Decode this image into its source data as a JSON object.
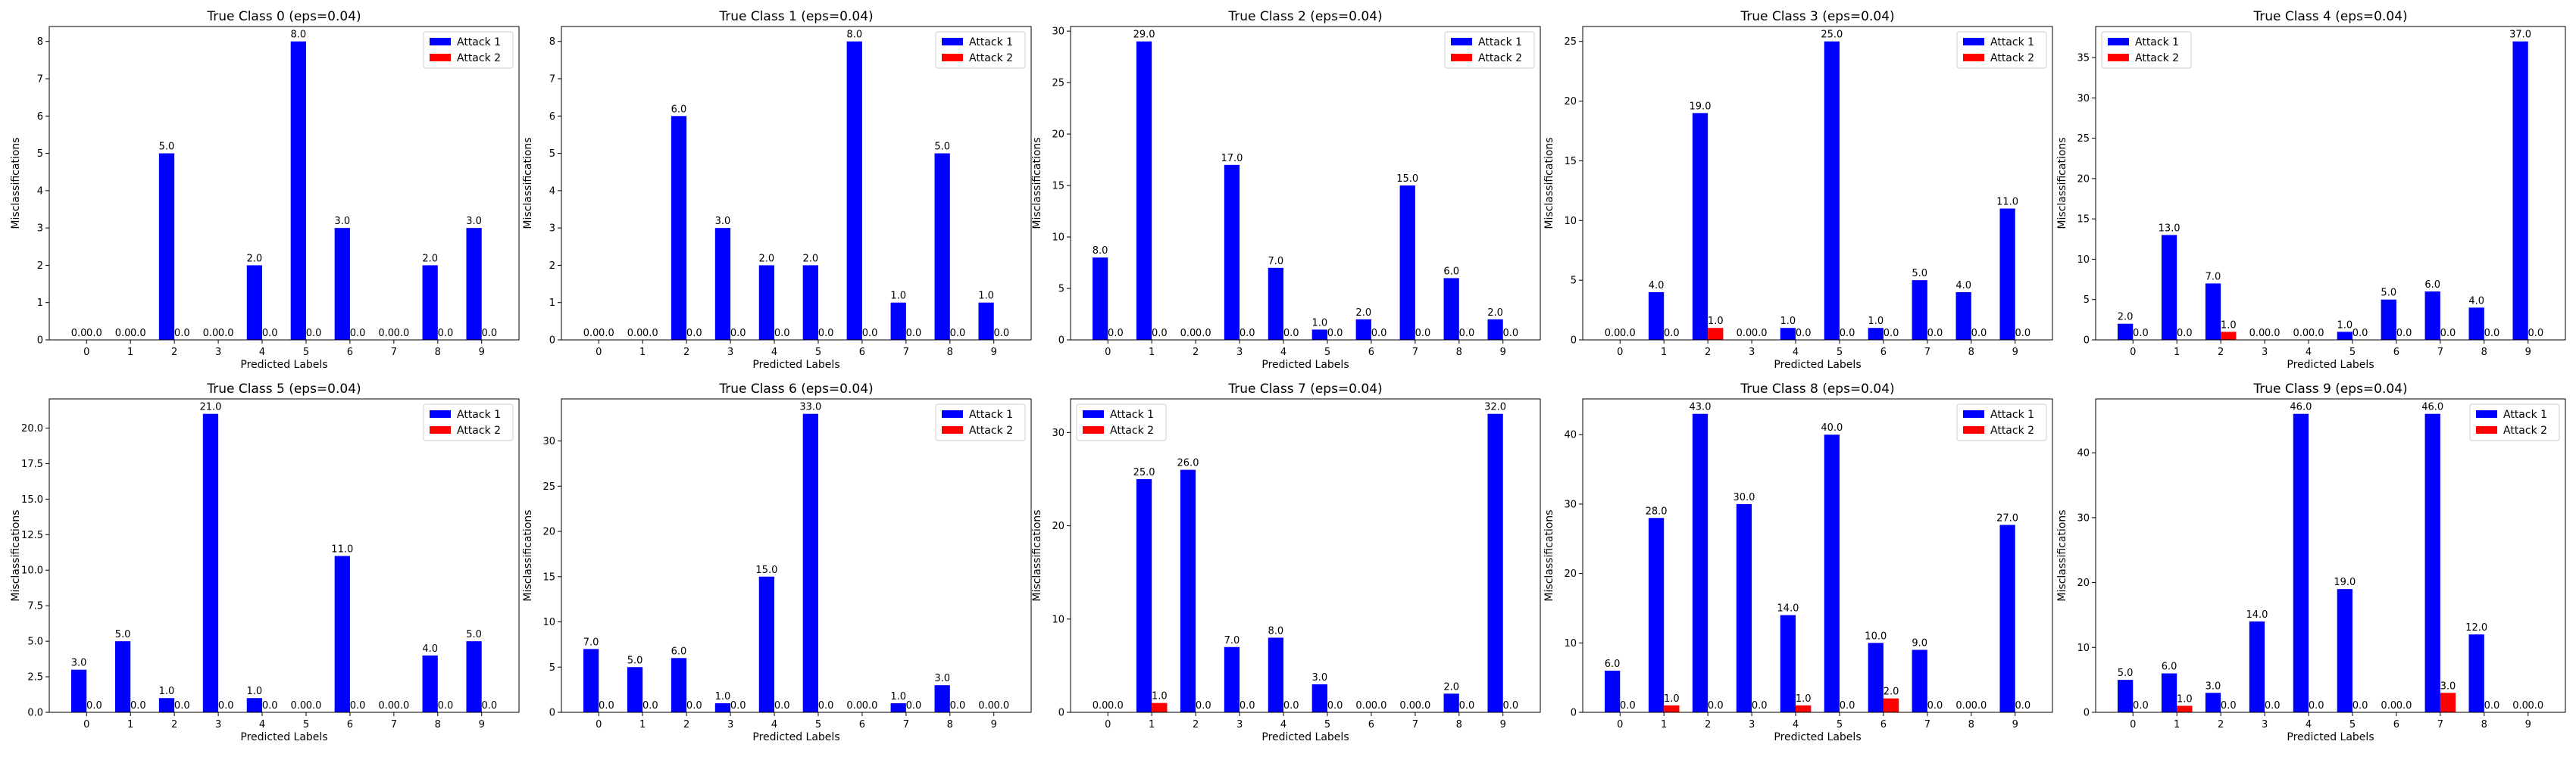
{
  "figure": {
    "layout": "2 rows x 5 columns"
  },
  "legend_labels": [
    "Attack 1",
    "Attack 2"
  ],
  "colors": {
    "attack1": "#0000ff",
    "attack2": "#ff0000",
    "axes": "#000000",
    "background": "#ffffff"
  },
  "chart_data": [
    {
      "type": "bar",
      "title": "True Class 0 (eps=0.04)",
      "xlabel": "Predicted Labels",
      "ylabel": "Misclassifications",
      "categories": [
        "0",
        "1",
        "2",
        "3",
        "4",
        "5",
        "6",
        "7",
        "8",
        "9"
      ],
      "series": [
        {
          "name": "Attack 1",
          "values": [
            0,
            0,
            5,
            0,
            2,
            8,
            3,
            0,
            2,
            3
          ]
        },
        {
          "name": "Attack 2",
          "values": [
            0,
            0,
            0,
            0,
            0,
            0,
            0,
            0,
            0,
            0
          ]
        }
      ],
      "ylim": [
        0,
        8.4
      ],
      "yticks": [
        0,
        1,
        2,
        3,
        4,
        5,
        6,
        7,
        8
      ],
      "yticks_text": [
        "0",
        "1",
        "2",
        "3",
        "4",
        "5",
        "6",
        "7",
        "8"
      ],
      "legend": "top-right"
    },
    {
      "type": "bar",
      "title": "True Class 1 (eps=0.04)",
      "xlabel": "Predicted Labels",
      "ylabel": "Misclassifications",
      "categories": [
        "0",
        "1",
        "2",
        "3",
        "4",
        "5",
        "6",
        "7",
        "8",
        "9"
      ],
      "series": [
        {
          "name": "Attack 1",
          "values": [
            0,
            0,
            6,
            3,
            2,
            2,
            8,
            1,
            5,
            1
          ]
        },
        {
          "name": "Attack 2",
          "values": [
            0,
            0,
            0,
            0,
            0,
            0,
            0,
            0,
            0,
            0
          ]
        }
      ],
      "ylim": [
        0,
        8.4
      ],
      "yticks": [
        0,
        1,
        2,
        3,
        4,
        5,
        6,
        7,
        8
      ],
      "yticks_text": [
        "0",
        "1",
        "2",
        "3",
        "4",
        "5",
        "6",
        "7",
        "8"
      ],
      "legend": "top-right"
    },
    {
      "type": "bar",
      "title": "True Class 2 (eps=0.04)",
      "xlabel": "Predicted Labels",
      "ylabel": "Misclassifications",
      "categories": [
        "0",
        "1",
        "2",
        "3",
        "4",
        "5",
        "6",
        "7",
        "8",
        "9"
      ],
      "series": [
        {
          "name": "Attack 1",
          "values": [
            8,
            29,
            0,
            17,
            7,
            1,
            2,
            15,
            6,
            2
          ]
        },
        {
          "name": "Attack 2",
          "values": [
            0,
            0,
            0,
            0,
            0,
            0,
            0,
            0,
            0,
            0
          ]
        }
      ],
      "ylim": [
        0,
        30.45
      ],
      "yticks": [
        0,
        5,
        10,
        15,
        20,
        25,
        30
      ],
      "yticks_text": [
        "0",
        "5",
        "10",
        "15",
        "20",
        "25",
        "30"
      ],
      "legend": "top-right"
    },
    {
      "type": "bar",
      "title": "True Class 3 (eps=0.04)",
      "xlabel": "Predicted Labels",
      "ylabel": "Misclassifications",
      "categories": [
        "0",
        "1",
        "2",
        "3",
        "4",
        "5",
        "6",
        "7",
        "8",
        "9"
      ],
      "series": [
        {
          "name": "Attack 1",
          "values": [
            0,
            4,
            19,
            0,
            1,
            25,
            1,
            5,
            4,
            11
          ]
        },
        {
          "name": "Attack 2",
          "values": [
            0,
            0,
            1,
            0,
            0,
            0,
            0,
            0,
            0,
            0
          ]
        }
      ],
      "ylim": [
        0,
        26.25
      ],
      "yticks": [
        0,
        5,
        10,
        15,
        20,
        25
      ],
      "yticks_text": [
        "0",
        "5",
        "10",
        "15",
        "20",
        "25"
      ],
      "legend": "top-right"
    },
    {
      "type": "bar",
      "title": "True Class 4 (eps=0.04)",
      "xlabel": "Predicted Labels",
      "ylabel": "Misclassifications",
      "categories": [
        "0",
        "1",
        "2",
        "3",
        "4",
        "5",
        "6",
        "7",
        "8",
        "9"
      ],
      "series": [
        {
          "name": "Attack 1",
          "values": [
            2,
            13,
            7,
            0,
            0,
            1,
            5,
            6,
            4,
            37
          ]
        },
        {
          "name": "Attack 2",
          "values": [
            0,
            0,
            1,
            0,
            0,
            0,
            0,
            0,
            0,
            0
          ]
        }
      ],
      "ylim": [
        0,
        38.85
      ],
      "yticks": [
        0,
        5,
        10,
        15,
        20,
        25,
        30,
        35
      ],
      "yticks_text": [
        "0",
        "5",
        "10",
        "15",
        "20",
        "25",
        "30",
        "35"
      ],
      "legend": "top-left"
    },
    {
      "type": "bar",
      "title": "True Class 5 (eps=0.04)",
      "xlabel": "Predicted Labels",
      "ylabel": "Misclassifications",
      "categories": [
        "0",
        "1",
        "2",
        "3",
        "4",
        "5",
        "6",
        "7",
        "8",
        "9"
      ],
      "series": [
        {
          "name": "Attack 1",
          "values": [
            3,
            5,
            1,
            21,
            1,
            0,
            11,
            0,
            4,
            5
          ]
        },
        {
          "name": "Attack 2",
          "values": [
            0,
            0,
            0,
            0,
            0,
            0,
            0,
            0,
            0,
            0
          ]
        }
      ],
      "ylim": [
        0,
        22.05
      ],
      "yticks": [
        0,
        2.5,
        5,
        7.5,
        10,
        12.5,
        15,
        17.5,
        20
      ],
      "yticks_text": [
        "0.0",
        "2.5",
        "5.0",
        "7.5",
        "10.0",
        "12.5",
        "15.0",
        "17.5",
        "20.0"
      ],
      "legend": "top-right"
    },
    {
      "type": "bar",
      "title": "True Class 6 (eps=0.04)",
      "xlabel": "Predicted Labels",
      "ylabel": "Misclassifications",
      "categories": [
        "0",
        "1",
        "2",
        "3",
        "4",
        "5",
        "6",
        "7",
        "8",
        "9"
      ],
      "series": [
        {
          "name": "Attack 1",
          "values": [
            7,
            5,
            6,
            1,
            15,
            33,
            0,
            1,
            3,
            0
          ]
        },
        {
          "name": "Attack 2",
          "values": [
            0,
            0,
            0,
            0,
            0,
            0,
            0,
            0,
            0,
            0
          ]
        }
      ],
      "ylim": [
        0,
        34.65
      ],
      "yticks": [
        0,
        5,
        10,
        15,
        20,
        25,
        30
      ],
      "yticks_text": [
        "0",
        "5",
        "10",
        "15",
        "20",
        "25",
        "30"
      ],
      "legend": "top-right"
    },
    {
      "type": "bar",
      "title": "True Class 7 (eps=0.04)",
      "xlabel": "Predicted Labels",
      "ylabel": "Misclassifications",
      "categories": [
        "0",
        "1",
        "2",
        "3",
        "4",
        "5",
        "6",
        "7",
        "8",
        "9"
      ],
      "series": [
        {
          "name": "Attack 1",
          "values": [
            0,
            25,
            26,
            7,
            8,
            3,
            0,
            0,
            2,
            32
          ]
        },
        {
          "name": "Attack 2",
          "values": [
            0,
            1,
            0,
            0,
            0,
            0,
            0,
            0,
            0,
            0
          ]
        }
      ],
      "ylim": [
        0,
        33.6
      ],
      "yticks": [
        0,
        10,
        20,
        30
      ],
      "yticks_text": [
        "0",
        "10",
        "20",
        "30"
      ],
      "legend": "top-left"
    },
    {
      "type": "bar",
      "title": "True Class 8 (eps=0.04)",
      "xlabel": "Predicted Labels",
      "ylabel": "Misclassifications",
      "categories": [
        "0",
        "1",
        "2",
        "3",
        "4",
        "5",
        "6",
        "7",
        "8",
        "9"
      ],
      "series": [
        {
          "name": "Attack 1",
          "values": [
            6,
            28,
            43,
            30,
            14,
            40,
            10,
            9,
            0,
            27
          ]
        },
        {
          "name": "Attack 2",
          "values": [
            0,
            1,
            0,
            0,
            1,
            0,
            2,
            0,
            0,
            0
          ]
        }
      ],
      "ylim": [
        0,
        45.15
      ],
      "yticks": [
        0,
        10,
        20,
        30,
        40
      ],
      "yticks_text": [
        "0",
        "10",
        "20",
        "30",
        "40"
      ],
      "legend": "top-right"
    },
    {
      "type": "bar",
      "title": "True Class 9 (eps=0.04)",
      "xlabel": "Predicted Labels",
      "ylabel": "Misclassifications",
      "categories": [
        "0",
        "1",
        "2",
        "3",
        "4",
        "5",
        "6",
        "7",
        "8",
        "9"
      ],
      "series": [
        {
          "name": "Attack 1",
          "values": [
            5,
            6,
            3,
            14,
            46,
            19,
            0,
            46,
            12,
            0
          ]
        },
        {
          "name": "Attack 2",
          "values": [
            0,
            1,
            0,
            0,
            0,
            0,
            0,
            3,
            0,
            0
          ]
        }
      ],
      "ylim": [
        0,
        48.3
      ],
      "yticks": [
        0,
        10,
        20,
        30,
        40
      ],
      "yticks_text": [
        "0",
        "10",
        "20",
        "30",
        "40"
      ],
      "legend": "top-right"
    }
  ]
}
